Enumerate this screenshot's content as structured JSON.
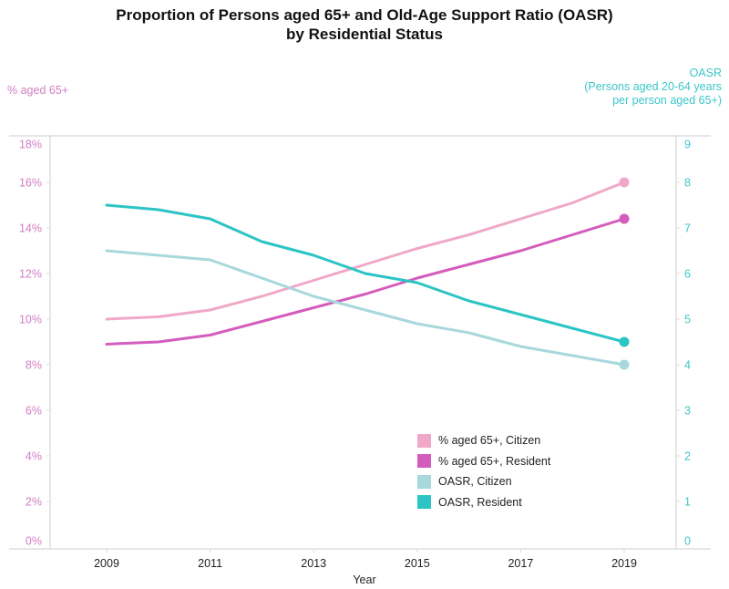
{
  "chart_data": {
    "type": "line",
    "title": "Proportion of Persons aged 65+ and Old-Age Support Ratio (OASR)",
    "subtitle": "by Residential Status",
    "xlabel": "Year",
    "ylabel_left": "% aged 65+",
    "ylabel_right": [
      "OASR",
      "(Persons aged 20-64 years",
      "per person aged 65+)"
    ],
    "x": [
      2009,
      2010,
      2011,
      2012,
      2013,
      2014,
      2015,
      2016,
      2017,
      2018,
      2019
    ],
    "x_ticks": [
      "2009",
      "2011",
      "2013",
      "2015",
      "2017",
      "2019"
    ],
    "y_left_ticks": [
      "0%",
      "2%",
      "4%",
      "6%",
      "8%",
      "10%",
      "12%",
      "14%",
      "16%",
      "18%"
    ],
    "y_right_ticks": [
      "0",
      "1",
      "2",
      "3",
      "4",
      "5",
      "6",
      "7",
      "8",
      "9"
    ],
    "ylim_left": [
      0,
      18
    ],
    "ylim_right": [
      0,
      9
    ],
    "xlim": [
      2008,
      2020
    ],
    "grid": false,
    "legend_position": "bottom-right",
    "series": [
      {
        "name": "% aged 65+, Citizen",
        "axis": "left",
        "unit": "%",
        "color": "#f0a8c8",
        "values": [
          10.0,
          10.1,
          10.4,
          11.0,
          11.7,
          12.4,
          13.1,
          13.7,
          14.4,
          15.1,
          16.0
        ]
      },
      {
        "name": "% aged 65+, Resident",
        "axis": "left",
        "unit": "%",
        "color": "#d45cbc",
        "values": [
          8.9,
          9.0,
          9.3,
          9.9,
          10.5,
          11.1,
          11.8,
          12.4,
          13.0,
          13.7,
          14.4
        ]
      },
      {
        "name": "OASR, Citizen",
        "axis": "right",
        "unit": "ratio",
        "color": "#a8d8dc",
        "values": [
          6.5,
          6.4,
          6.3,
          5.9,
          5.5,
          5.2,
          4.9,
          4.7,
          4.4,
          4.2,
          4.0
        ]
      },
      {
        "name": "OASR, Resident",
        "axis": "right",
        "unit": "ratio",
        "color": "#2cc4c4",
        "values": [
          7.5,
          7.4,
          7.2,
          6.7,
          6.4,
          6.0,
          5.8,
          5.4,
          5.1,
          4.8,
          4.5
        ]
      }
    ],
    "endpoint_markers": true
  },
  "colors": {
    "left_axis": "#d07ec4",
    "right_axis": "#3dc6c9",
    "axis_line": "#dddddd",
    "text": "#222222"
  }
}
